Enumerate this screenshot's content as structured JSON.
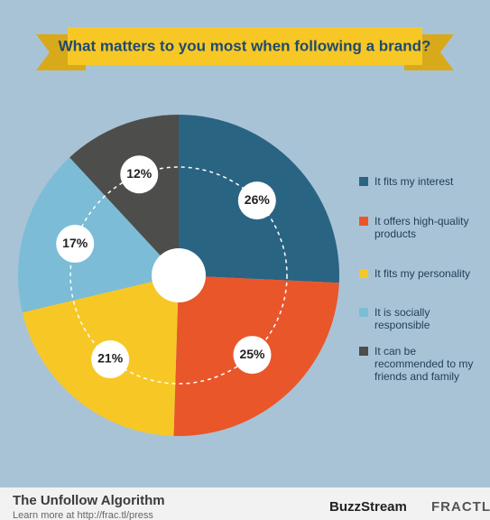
{
  "chart_data": {
    "type": "pie",
    "title": "What matters to you most when following a brand?",
    "categories": [
      "It fits my interest",
      "It offers high-quality products",
      "It fits my personality",
      "It is socially responsible",
      "It can be recommended to my friends and family"
    ],
    "values": [
      26,
      25,
      21,
      17,
      12
    ],
    "value_labels": [
      "26%",
      "25%",
      "21%",
      "17%",
      "12%"
    ],
    "colors": [
      "#2a6483",
      "#e9562a",
      "#f7c825",
      "#7cbcd6",
      "#4d4d4b"
    ],
    "legend": "right"
  },
  "footer": {
    "title": "The Unfollow Algorithm",
    "link": "Learn more at http://frac.tl/press",
    "brands": [
      "BuzzStream",
      "FRACTL"
    ]
  }
}
